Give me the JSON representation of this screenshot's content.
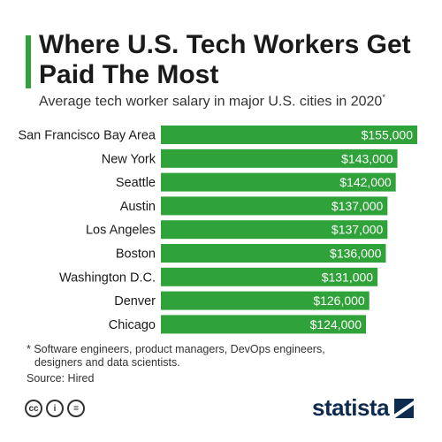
{
  "header": {
    "title": "Where U.S. Tech Workers Get Paid The Most",
    "subtitle": "Average tech worker salary in major U.S. cities in 2020",
    "subtitle_mark": "*"
  },
  "chart_data": {
    "type": "bar",
    "orientation": "horizontal",
    "categories": [
      "San Francisco Bay Area",
      "New York",
      "Seattle",
      "Austin",
      "Los Angeles",
      "Boston",
      "Washington D.C.",
      "Denver",
      "Chicago"
    ],
    "values": [
      155000,
      143000,
      142000,
      137000,
      137000,
      136000,
      131000,
      126000,
      124000
    ],
    "value_labels": [
      "$155,000",
      "$143,000",
      "$142,000",
      "$137,000",
      "$137,000",
      "$136,000",
      "$131,000",
      "$126,000",
      "$124,000"
    ],
    "title": "Where U.S. Tech Workers Get Paid The Most",
    "subtitle": "Average tech worker salary in major U.S. cities in 2020",
    "xlim": [
      0,
      155000
    ],
    "grid": false,
    "colors": {
      "bar": "#2fa23a",
      "label_text": "#ffffff"
    }
  },
  "footer": {
    "footnote_line1": "* Software engineers, product managers, DevOps engineers,",
    "footnote_line2": "designers and data scientists.",
    "source": "Source: Hired",
    "brand": "statista",
    "license_icons": [
      "cc-icon",
      "attribution-icon",
      "no-derivatives-icon"
    ]
  }
}
